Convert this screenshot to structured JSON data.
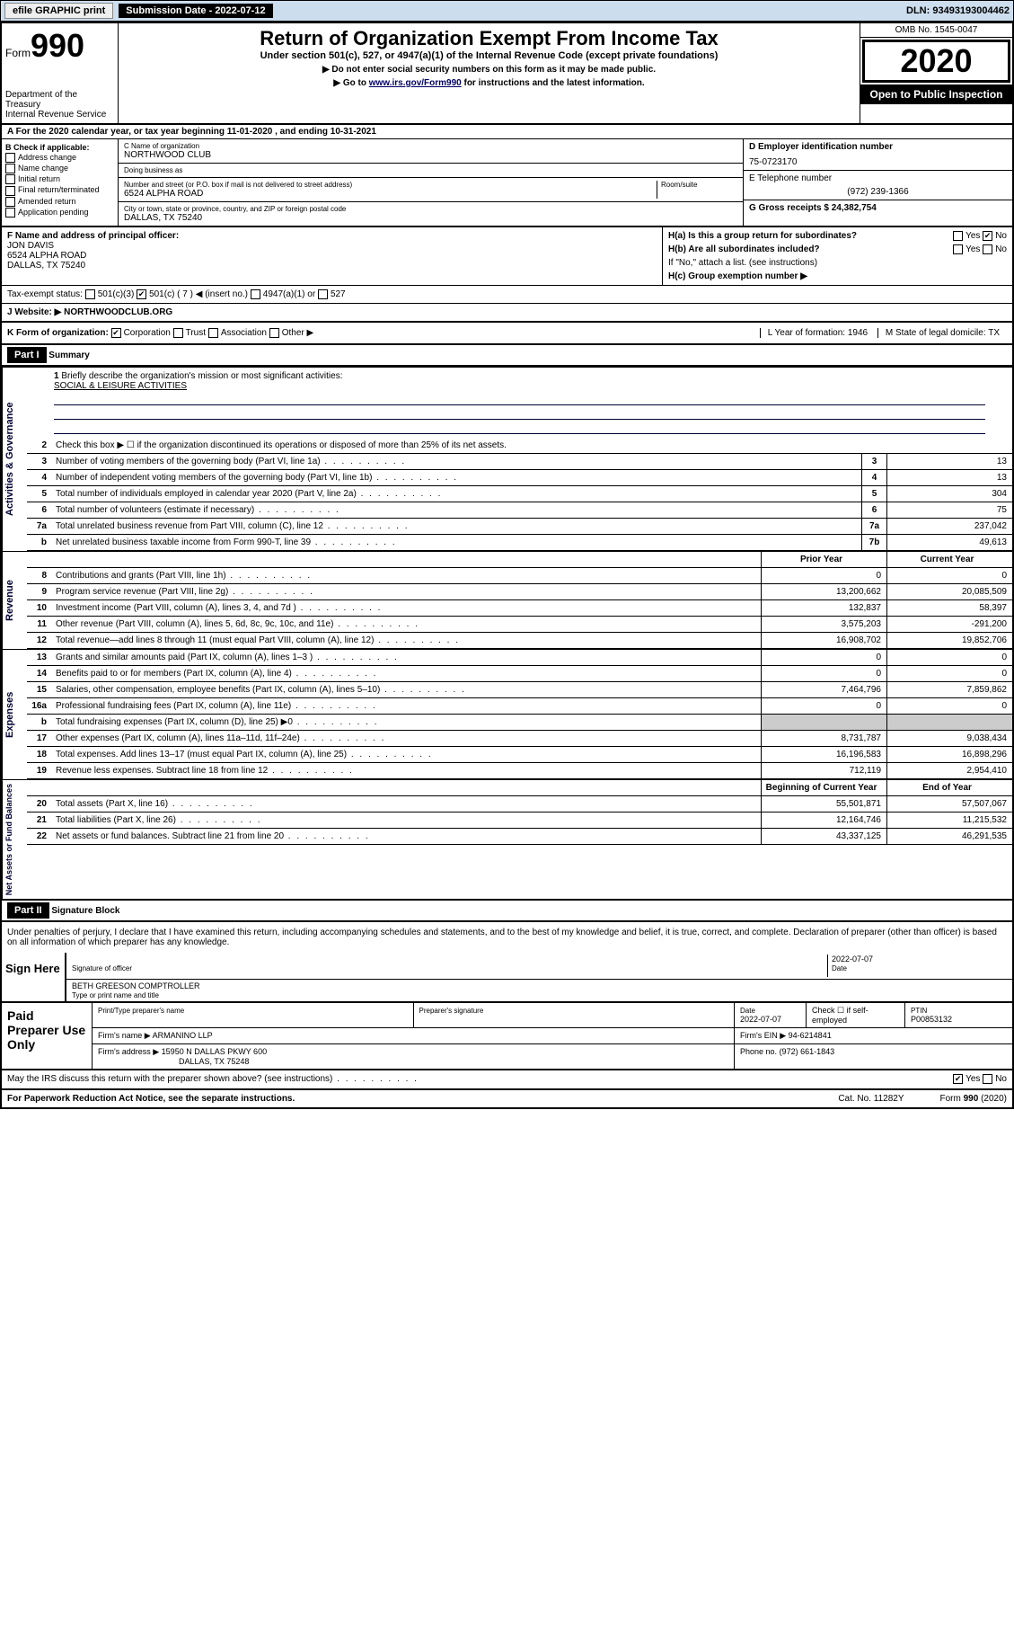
{
  "topbar": {
    "efile": "efile GRAPHIC print",
    "subdate_label": "Submission Date - 2022-07-12",
    "dln": "DLN: 93493193004462"
  },
  "header": {
    "form_label": "Form",
    "form_num": "990",
    "dept": "Department of the Treasury\nInternal Revenue Service",
    "title": "Return of Organization Exempt From Income Tax",
    "subtitle": "Under section 501(c), 527, or 4947(a)(1) of the Internal Revenue Code (except private foundations)",
    "note1": "▶ Do not enter social security numbers on this form as it may be made public.",
    "note2_pre": "▶ Go to ",
    "note2_link": "www.irs.gov/Form990",
    "note2_post": " for instructions and the latest information.",
    "omb": "OMB No. 1545-0047",
    "year": "2020",
    "open": "Open to Public Inspection"
  },
  "rowA": "A For the 2020 calendar year, or tax year beginning 11-01-2020   , and ending 10-31-2021",
  "colB": {
    "title": "B Check if applicable:",
    "items": [
      "Address change",
      "Name change",
      "Initial return",
      "Final return/terminated",
      "Amended return",
      "Application pending"
    ]
  },
  "colC": {
    "name_lab": "C Name of organization",
    "name": "NORTHWOOD CLUB",
    "dba_lab": "Doing business as",
    "dba": "",
    "addr_lab": "Number and street (or P.O. box if mail is not delivered to street address)",
    "room_lab": "Room/suite",
    "addr": "6524 ALPHA ROAD",
    "city_lab": "City or town, state or province, country, and ZIP or foreign postal code",
    "city": "DALLAS, TX  75240"
  },
  "colDE": {
    "d_lab": "D Employer identification number",
    "d_val": "75-0723170",
    "e_lab": "E Telephone number",
    "e_val": "(972) 239-1366",
    "g_lab": "G Gross receipts $ 24,382,754"
  },
  "sectF": {
    "f_lab": "F Name and address of principal officer:",
    "f_name": "JON DAVIS",
    "f_addr1": "6524 ALPHA ROAD",
    "f_addr2": "DALLAS, TX  75240",
    "tax_lab": "Tax-exempt status:",
    "t1": "501(c)(3)",
    "t2": "501(c) ( 7 ) ◀ (insert no.)",
    "t3": "4947(a)(1) or",
    "t4": "527"
  },
  "sectH": {
    "ha": "H(a)  Is this a group return for subordinates?",
    "ha_yes": "Yes",
    "ha_no": "No",
    "hb": "H(b)  Are all subordinates included?",
    "hb_note": "If \"No,\" attach a list. (see instructions)",
    "hc": "H(c)  Group exemption number ▶"
  },
  "rowJ": {
    "lab": "J Website: ▶",
    "val": "NORTHWOODCLUB.ORG"
  },
  "rowK": {
    "lab": "K Form of organization:",
    "o1": "Corporation",
    "o2": "Trust",
    "o3": "Association",
    "o4": "Other ▶",
    "l_lab": "L Year of formation: 1946",
    "m_lab": "M State of legal domicile: TX"
  },
  "part1": {
    "hdr": "Part I",
    "title": "Summary",
    "q1": "Briefly describe the organization's mission or most significant activities:",
    "mission": "SOCIAL & LEISURE ACTIVITIES",
    "q2": "Check this box ▶ ☐  if the organization discontinued its operations or disposed of more than 25% of its net assets.",
    "sidelabels": {
      "ag": "Activities & Governance",
      "rev": "Revenue",
      "exp": "Expenses",
      "nab": "Net Assets or Fund Balances"
    },
    "rows_ag": [
      {
        "n": "3",
        "t": "Number of voting members of the governing body (Part VI, line 1a)",
        "b": "3",
        "v": "13"
      },
      {
        "n": "4",
        "t": "Number of independent voting members of the governing body (Part VI, line 1b)",
        "b": "4",
        "v": "13"
      },
      {
        "n": "5",
        "t": "Total number of individuals employed in calendar year 2020 (Part V, line 2a)",
        "b": "5",
        "v": "304"
      },
      {
        "n": "6",
        "t": "Total number of volunteers (estimate if necessary)",
        "b": "6",
        "v": "75"
      },
      {
        "n": "7a",
        "t": "Total unrelated business revenue from Part VIII, column (C), line 12",
        "b": "7a",
        "v": "237,042"
      },
      {
        "n": "b",
        "t": "Net unrelated business taxable income from Form 990-T, line 39",
        "b": "7b",
        "v": "49,613"
      }
    ],
    "hdr_prior": "Prior Year",
    "hdr_current": "Current Year",
    "rows_rev": [
      {
        "n": "8",
        "t": "Contributions and grants (Part VIII, line 1h)",
        "p": "0",
        "c": "0"
      },
      {
        "n": "9",
        "t": "Program service revenue (Part VIII, line 2g)",
        "p": "13,200,662",
        "c": "20,085,509"
      },
      {
        "n": "10",
        "t": "Investment income (Part VIII, column (A), lines 3, 4, and 7d )",
        "p": "132,837",
        "c": "58,397"
      },
      {
        "n": "11",
        "t": "Other revenue (Part VIII, column (A), lines 5, 6d, 8c, 9c, 10c, and 11e)",
        "p": "3,575,203",
        "c": "-291,200"
      },
      {
        "n": "12",
        "t": "Total revenue—add lines 8 through 11 (must equal Part VIII, column (A), line 12)",
        "p": "16,908,702",
        "c": "19,852,706"
      }
    ],
    "rows_exp": [
      {
        "n": "13",
        "t": "Grants and similar amounts paid (Part IX, column (A), lines 1–3 )",
        "p": "0",
        "c": "0"
      },
      {
        "n": "14",
        "t": "Benefits paid to or for members (Part IX, column (A), line 4)",
        "p": "0",
        "c": "0"
      },
      {
        "n": "15",
        "t": "Salaries, other compensation, employee benefits (Part IX, column (A), lines 5–10)",
        "p": "7,464,796",
        "c": "7,859,862"
      },
      {
        "n": "16a",
        "t": "Professional fundraising fees (Part IX, column (A), line 11e)",
        "p": "0",
        "c": "0"
      },
      {
        "n": "b",
        "t": "Total fundraising expenses (Part IX, column (D), line 25) ▶0",
        "p": "",
        "c": "",
        "shade": true
      },
      {
        "n": "17",
        "t": "Other expenses (Part IX, column (A), lines 11a–11d, 11f–24e)",
        "p": "8,731,787",
        "c": "9,038,434"
      },
      {
        "n": "18",
        "t": "Total expenses. Add lines 13–17 (must equal Part IX, column (A), line 25)",
        "p": "16,196,583",
        "c": "16,898,296"
      },
      {
        "n": "19",
        "t": "Revenue less expenses. Subtract line 18 from line 12",
        "p": "712,119",
        "c": "2,954,410"
      }
    ],
    "hdr_begin": "Beginning of Current Year",
    "hdr_end": "End of Year",
    "rows_nab": [
      {
        "n": "20",
        "t": "Total assets (Part X, line 16)",
        "p": "55,501,871",
        "c": "57,507,067"
      },
      {
        "n": "21",
        "t": "Total liabilities (Part X, line 26)",
        "p": "12,164,746",
        "c": "11,215,532"
      },
      {
        "n": "22",
        "t": "Net assets or fund balances. Subtract line 21 from line 20",
        "p": "43,337,125",
        "c": "46,291,535"
      }
    ]
  },
  "part2": {
    "hdr": "Part II",
    "title": "Signature Block",
    "decl": "Under penalties of perjury, I declare that I have examined this return, including accompanying schedules and statements, and to the best of my knowledge and belief, it is true, correct, and complete. Declaration of preparer (other than officer) is based on all information of which preparer has any knowledge."
  },
  "sign": {
    "label": "Sign Here",
    "sig_of": "Signature of officer",
    "date_lab": "Date",
    "date": "2022-07-07",
    "name": "BETH GREESON COMPTROLLER",
    "name_lab": "Type or print name and title"
  },
  "prep": {
    "label": "Paid Preparer Use Only",
    "h1": "Print/Type preparer's name",
    "h2": "Preparer's signature",
    "h3_lab": "Date",
    "h3": "2022-07-07",
    "h4": "Check ☐ if self-employed",
    "h5_lab": "PTIN",
    "h5": "P00853132",
    "firm_lab": "Firm's name    ▶",
    "firm": "ARMANINO LLP",
    "ein_lab": "Firm's EIN ▶",
    "ein": "94-6214841",
    "addr_lab": "Firm's address ▶",
    "addr1": "15950 N DALLAS PKWY 600",
    "addr2": "DALLAS, TX  75248",
    "phone_lab": "Phone no.",
    "phone": "(972) 661-1843"
  },
  "foot": {
    "q": "May the IRS discuss this return with the preparer shown above? (see instructions)",
    "yes": "Yes",
    "no": "No",
    "pra": "For Paperwork Reduction Act Notice, see the separate instructions.",
    "cat": "Cat. No. 11282Y",
    "form": "Form 990 (2020)"
  }
}
